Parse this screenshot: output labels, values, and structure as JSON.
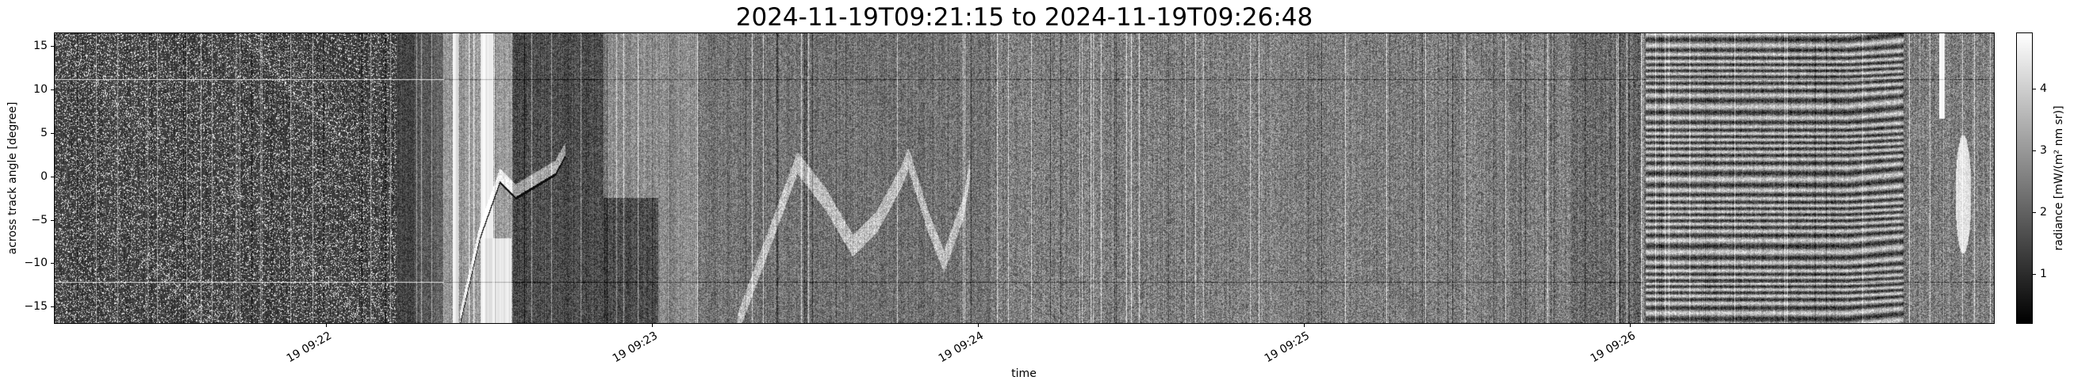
{
  "chart_data": {
    "type": "heatmap",
    "title": "2024-11-19T09:21:15 to 2024-11-19T09:26:48",
    "xlabel": "time",
    "ylabel": "across track angle [degree]",
    "xlim": [
      "2024-11-19T09:21:10",
      "2024-11-19T09:27:07"
    ],
    "xticks": [
      {
        "value": "2024-11-19T09:22:00",
        "label": "19 09:22"
      },
      {
        "value": "2024-11-19T09:23:00",
        "label": "19 09:23"
      },
      {
        "value": "2024-11-19T09:24:00",
        "label": "19 09:24"
      },
      {
        "value": "2024-11-19T09:25:00",
        "label": "19 09:25"
      },
      {
        "value": "2024-11-19T09:26:00",
        "label": "19 09:26"
      }
    ],
    "ylim": [
      -16.9,
      16.5
    ],
    "yticks": [
      {
        "value": 15,
        "label": "15"
      },
      {
        "value": 10,
        "label": "10"
      },
      {
        "value": 5,
        "label": "5"
      },
      {
        "value": 0,
        "label": "0"
      },
      {
        "value": -5,
        "label": "−5"
      },
      {
        "value": -10,
        "label": "−10"
      },
      {
        "value": -15,
        "label": "−15"
      }
    ],
    "colormap": "gray",
    "grid": false,
    "colorbar": {
      "label": "radiance [mW/(m² nm sr)]",
      "vmin": 0.2,
      "vmax": 4.9,
      "ticks": [
        {
          "value": 1,
          "label": "1"
        },
        {
          "value": 2,
          "label": "2"
        },
        {
          "value": 3,
          "label": "3"
        },
        {
          "value": 4,
          "label": "4"
        }
      ]
    }
  }
}
